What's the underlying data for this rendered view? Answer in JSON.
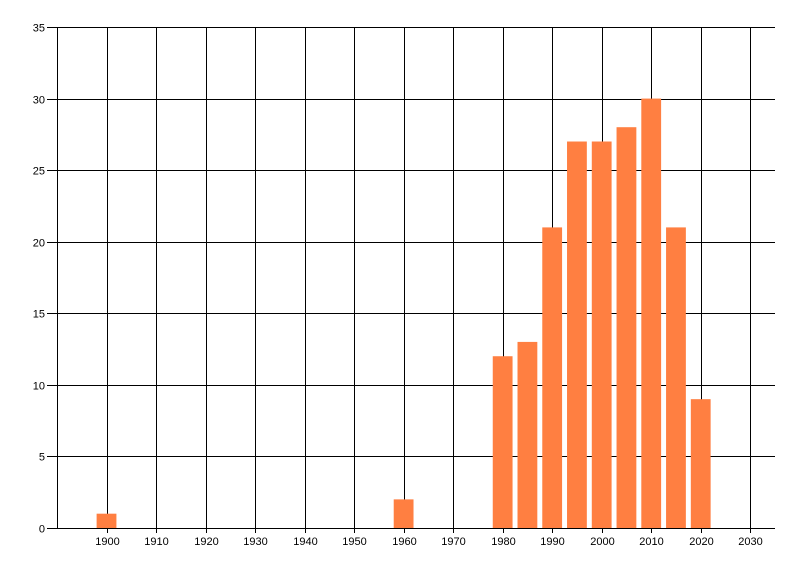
{
  "chart_data": {
    "type": "bar",
    "title": "",
    "xlabel": "",
    "ylabel": "",
    "x": [
      1900,
      1960,
      1980,
      1985,
      1990,
      1995,
      2000,
      2005,
      2010,
      2015,
      2020
    ],
    "values": [
      1,
      2,
      12,
      13,
      21,
      27,
      27,
      28,
      30,
      21,
      9
    ],
    "bar_width_years": 4,
    "xlim": [
      1890,
      2035
    ],
    "ylim": [
      0,
      35
    ],
    "xticks": [
      1900,
      1910,
      1920,
      1930,
      1940,
      1950,
      1960,
      1970,
      1980,
      1990,
      2000,
      2010,
      2020,
      2030
    ],
    "yticks": [
      0,
      5,
      10,
      15,
      20,
      25,
      30,
      35
    ],
    "grid": true,
    "legend": "none",
    "bar_color": "#FF7F41",
    "grid_color": "#000000"
  }
}
